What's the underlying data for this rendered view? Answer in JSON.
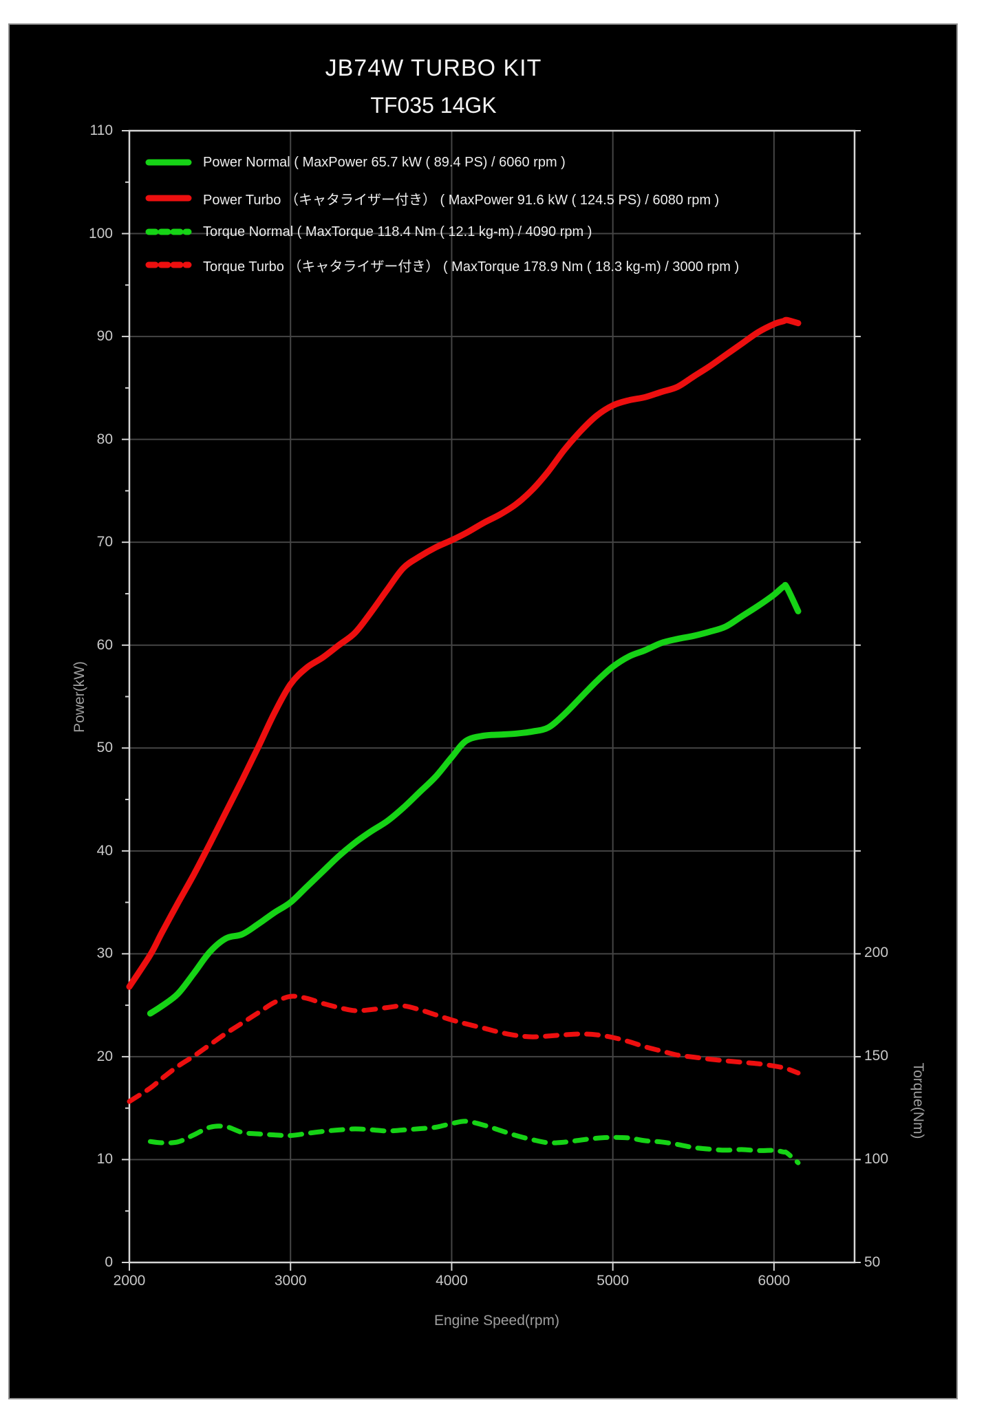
{
  "title": "JB74W TURBO KIT",
  "subtitle": "TF035 14GK",
  "colors": {
    "green": "#16d316",
    "red": "#ed0f0f",
    "grid": "#454545",
    "frame": "#d6d6d6"
  },
  "legend": [
    {
      "label": "Power Normal ( MaxPower 65.7 kW ( 89.4 PS) / 6060 rpm )",
      "color": "#16d316",
      "dash": false
    },
    {
      "label": "Power Turbo （キャタライザー付き） ( MaxPower 91.6 kW ( 124.5 PS) / 6080 rpm )",
      "color": "#ed0f0f",
      "dash": false
    },
    {
      "label": "Torque Normal ( MaxTorque 118.4 Nm ( 12.1 kg-m) / 4090 rpm )",
      "color": "#16d316",
      "dash": true
    },
    {
      "label": "Torque Turbo （キャタライザー付き） ( MaxTorque 178.9 Nm ( 18.3 kg-m) / 3000 rpm )",
      "color": "#ed0f0f",
      "dash": true
    }
  ],
  "chart_data": {
    "type": "line",
    "title": "JB74W TURBO KIT TF035 14GK",
    "xlabel": "Engine Speed(rpm)",
    "ylabel_left": "Power(kW)",
    "ylabel_right": "Torque(Nm)",
    "x_range": [
      2000,
      6500
    ],
    "x_ticks": [
      2000,
      3000,
      4000,
      5000,
      6000
    ],
    "y_left_range": [
      0,
      110
    ],
    "y_left_ticks": [
      0,
      10,
      20,
      30,
      40,
      50,
      60,
      70,
      80,
      90,
      100,
      110
    ],
    "y_right_ticks": [
      50,
      100,
      150,
      200
    ],
    "grid": true,
    "legend_position": "top-left",
    "rpm": [
      2000,
      2130,
      2200,
      2300,
      2400,
      2500,
      2600,
      2700,
      2800,
      2900,
      3000,
      3100,
      3200,
      3300,
      3400,
      3500,
      3600,
      3700,
      3800,
      3900,
      4000,
      4090,
      4200,
      4300,
      4400,
      4500,
      4600,
      4700,
      4800,
      4900,
      5000,
      5100,
      5200,
      5300,
      5400,
      5500,
      5600,
      5700,
      5800,
      5900,
      6000,
      6060,
      6080,
      6150
    ],
    "series": [
      {
        "name": "Power Normal",
        "axis": "power",
        "color": "#16d316",
        "style": "solid",
        "max_label": "65.7 kW ( 89.4 PS) / 6060 rpm",
        "values": [
          null,
          24.2,
          24.9,
          26.1,
          28.1,
          30.2,
          31.5,
          31.9,
          32.9,
          34.0,
          35.0,
          36.5,
          38.0,
          39.5,
          40.8,
          41.9,
          42.9,
          44.2,
          45.7,
          47.2,
          49.1,
          50.7,
          51.2,
          51.3,
          51.4,
          51.6,
          52.0,
          53.3,
          54.9,
          56.5,
          57.9,
          58.9,
          59.5,
          60.2,
          60.6,
          60.9,
          61.3,
          61.8,
          62.8,
          63.8,
          64.9,
          65.7,
          65.6,
          63.3
        ]
      },
      {
        "name": "Power Turbo",
        "axis": "power",
        "color": "#ed0f0f",
        "style": "solid",
        "max_label": "91.6 kW ( 124.5 PS) / 6080 rpm",
        "values": [
          26.8,
          29.9,
          32.0,
          34.9,
          37.7,
          40.7,
          43.8,
          46.9,
          50.1,
          53.4,
          56.2,
          57.8,
          58.8,
          60.0,
          61.2,
          63.2,
          65.4,
          67.5,
          68.6,
          69.5,
          70.2,
          70.9,
          71.9,
          72.7,
          73.7,
          75.1,
          76.9,
          79.0,
          80.8,
          82.3,
          83.3,
          83.8,
          84.1,
          84.6,
          85.1,
          86.1,
          87.1,
          88.2,
          89.3,
          90.4,
          91.2,
          91.5,
          91.6,
          91.3
        ]
      },
      {
        "name": "Torque Normal",
        "axis": "torque",
        "color": "#16d316",
        "style": "dashed",
        "max_label": "118.4 Nm ( 12.1 kg-m) / 4090 rpm",
        "values": [
          null,
          108.6,
          108.0,
          108.4,
          111.8,
          115.5,
          115.8,
          113.0,
          112.3,
          111.8,
          111.5,
          112.5,
          113.5,
          114.2,
          114.7,
          114.3,
          113.7,
          114.2,
          114.8,
          115.5,
          117.3,
          118.4,
          116.5,
          114.0,
          111.5,
          109.5,
          108.0,
          108.3,
          109.3,
          110.2,
          110.6,
          110.3,
          109.0,
          108.4,
          107.2,
          105.7,
          104.9,
          104.4,
          104.7,
          104.2,
          104.3,
          103.5,
          103.1,
          98.3
        ]
      },
      {
        "name": "Torque Turbo",
        "axis": "torque",
        "color": "#ed0f0f",
        "style": "dashed",
        "max_label": "178.9 Nm ( 18.3 kg-m) / 3000 rpm",
        "values": [
          128.0,
          134.5,
          139.0,
          145.0,
          150.0,
          155.5,
          161.0,
          166.0,
          171.0,
          176.0,
          178.9,
          178.0,
          175.5,
          173.5,
          172.0,
          172.5,
          173.5,
          174.3,
          172.5,
          170.0,
          167.5,
          165.6,
          163.5,
          161.5,
          160.0,
          159.3,
          159.7,
          160.3,
          160.7,
          160.3,
          159.0,
          157.0,
          154.5,
          152.5,
          150.5,
          149.5,
          148.5,
          147.7,
          147.0,
          146.3,
          145.2,
          144.3,
          143.9,
          141.8
        ]
      }
    ]
  }
}
